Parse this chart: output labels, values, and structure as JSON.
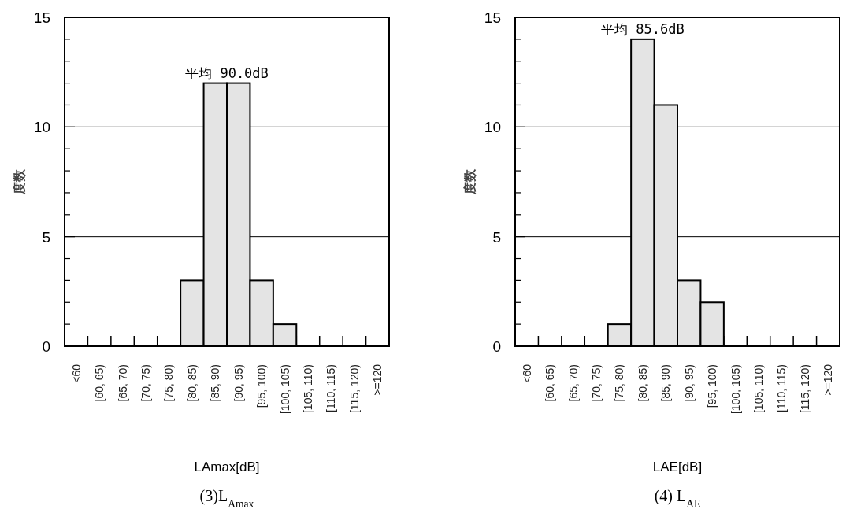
{
  "chart_data": [
    {
      "type": "bar",
      "title": "(3)L$_{Amax}$",
      "xlabel": "LAmax[dB]",
      "ylabel": "度数",
      "categories": [
        "<60",
        "[60, 65)",
        "[65, 70)",
        "[70, 75)",
        "[75, 80)",
        "[80, 85)",
        "[85, 90)",
        "[90, 95)",
        "[95, 100)",
        "[100, 105)",
        "[105, 110)",
        "[110, 115)",
        "[115, 120)",
        ">=120"
      ],
      "values": [
        0,
        0,
        0,
        0,
        0,
        3,
        12,
        12,
        3,
        1,
        0,
        0,
        0,
        0
      ],
      "color": "#e4e4e4",
      "ylim": [
        0,
        15
      ],
      "yticks": [
        0,
        {
          "value": 1,
          "label": null
        },
        {
          "value": 2,
          "label": null
        },
        {
          "value": 3,
          "label": null
        },
        {
          "value": 4,
          "label": null
        },
        5,
        {
          "value": 6,
          "label": null
        },
        {
          "value": 7,
          "label": null
        },
        {
          "value": 8,
          "label": null
        },
        {
          "value": 9,
          "label": null
        },
        10,
        {
          "value": 11,
          "label": null
        },
        {
          "value": 12,
          "label": null
        },
        {
          "value": 13,
          "label": null
        },
        {
          "value": 14,
          "label": null
        },
        15
      ],
      "grid": "y",
      "annotations": [
        "平均 90.0dB"
      ]
    },
    {
      "type": "bar",
      "title": "(4) L$_{AE}$",
      "xlabel": "LAE[dB]",
      "ylabel": "度数",
      "categories": [
        "<60",
        "[60, 65)",
        "[65, 70)",
        "[70, 75)",
        "[75, 80)",
        "[80, 85)",
        "[85, 90)",
        "[90, 95)",
        "[95, 100)",
        "[100, 105)",
        "[105, 110)",
        "[110, 115)",
        "[115, 120)",
        ">=120"
      ],
      "values": [
        0,
        0,
        0,
        0,
        1,
        14,
        11,
        3,
        2,
        0,
        0,
        0,
        0,
        0
      ],
      "color": "#e4e4e4",
      "ylim": [
        0,
        15
      ],
      "yticks": [
        0,
        {
          "value": 1,
          "label": null
        },
        {
          "value": 2,
          "label": null
        },
        {
          "value": 3,
          "label": null
        },
        {
          "value": 4,
          "label": null
        },
        5,
        {
          "value": 6,
          "label": null
        },
        {
          "value": 7,
          "label": null
        },
        {
          "value": 8,
          "label": null
        },
        {
          "value": 9,
          "label": null
        },
        10,
        {
          "value": 11,
          "label": null
        },
        {
          "value": 12,
          "label": null
        },
        {
          "value": 13,
          "label": null
        },
        {
          "value": 14,
          "label": null
        },
        15
      ],
      "grid": "y",
      "annotations": [
        "平均 85.6dB"
      ]
    }
  ]
}
